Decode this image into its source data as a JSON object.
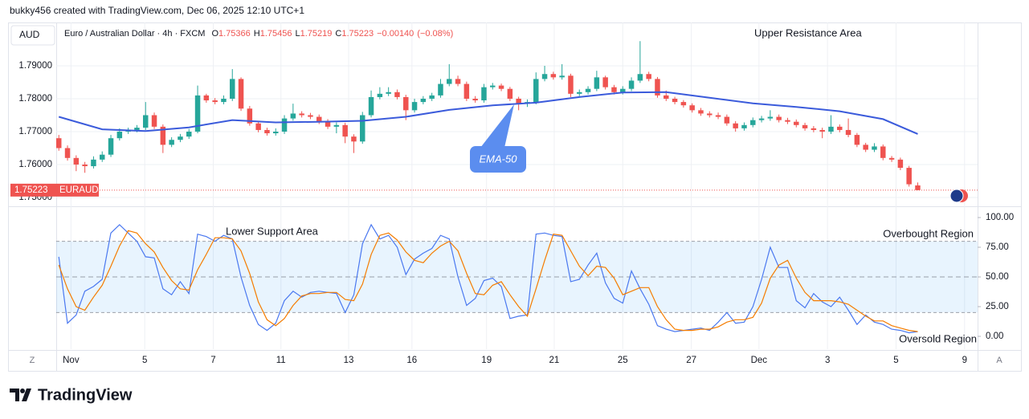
{
  "header": {
    "credit": "bukky456 created with TradingView.com, Dec 06, 2025 12:10 UTC+1",
    "currency": "AUD",
    "brand": "TradingView",
    "buttons": [
      "Z",
      "A"
    ]
  },
  "chart_data": {
    "type": "candlestick",
    "title": "Euro / Australian Dollar · 4h · FXCM",
    "symbol": "EURAUD",
    "ohlc_labels": [
      "O",
      "H",
      "L",
      "C"
    ],
    "change": {
      "value": -0.0014,
      "label": "−0.00140"
    },
    "change_percent": {
      "value": -0.08,
      "label": "(−0.08%)"
    },
    "up_color": "#26a69a",
    "down_color": "#ef5350",
    "xlim": [
      -0.3,
      105.9
    ],
    "xticks": [
      {
        "value": 1.4,
        "label": "Nov"
      },
      {
        "value": 9.9,
        "label": "5"
      },
      {
        "value": 17.8,
        "label": "7"
      },
      {
        "value": 25.6,
        "label": "11"
      },
      {
        "value": 33.4,
        "label": "13"
      },
      {
        "value": 40.7,
        "label": "16"
      },
      {
        "value": 49.3,
        "label": "19"
      },
      {
        "value": 57.1,
        "label": "21"
      },
      {
        "value": 65,
        "label": "25"
      },
      {
        "value": 72.9,
        "label": "27"
      },
      {
        "value": 80.7,
        "label": "Dec"
      },
      {
        "value": 88.6,
        "label": "3"
      },
      {
        "value": 96.5,
        "label": "5"
      },
      {
        "value": 104.4,
        "label": "9"
      }
    ],
    "ylim": [
      1.74756,
      1.80317
    ],
    "yticks": [
      {
        "value": 1.75,
        "label": "1.75000"
      },
      {
        "value": 1.76,
        "label": "1.76000"
      },
      {
        "value": 1.77,
        "label": "1.77000"
      },
      {
        "value": 1.78,
        "label": "1.78000"
      },
      {
        "value": 1.79,
        "label": "1.79000"
      }
    ],
    "grid": true,
    "x": [
      0,
      1,
      2,
      3,
      4,
      5,
      6,
      7,
      8,
      9,
      10,
      11,
      12,
      13,
      14,
      15,
      16,
      17,
      18,
      19,
      20,
      21,
      22,
      23,
      24,
      25,
      26,
      27,
      28,
      29,
      30,
      31,
      32,
      33,
      34,
      35,
      36,
      37,
      38,
      39,
      40,
      41,
      42,
      43,
      44,
      45,
      46,
      47,
      48,
      49,
      50,
      51,
      52,
      53,
      54,
      55,
      56,
      57,
      58,
      59,
      60,
      61,
      62,
      63,
      64,
      65,
      66,
      67,
      68,
      69,
      70,
      71,
      72,
      73,
      74,
      75,
      76,
      77,
      78,
      79,
      80,
      81,
      82,
      83,
      84,
      85,
      86,
      87,
      88,
      89,
      90,
      91,
      92,
      93,
      94,
      95,
      96,
      97,
      98,
      99
    ],
    "candles": {
      "open": [
        1.768,
        1.765,
        1.762,
        1.76,
        1.7595,
        1.7615,
        1.763,
        1.768,
        1.77,
        1.7705,
        1.7712,
        1.775,
        1.7715,
        1.766,
        1.7675,
        1.7685,
        1.77,
        1.781,
        1.7795,
        1.779,
        1.78,
        1.786,
        1.777,
        1.7725,
        1.7705,
        1.7695,
        1.77,
        1.774,
        1.7755,
        1.775,
        1.7745,
        1.773,
        1.7715,
        1.772,
        1.7685,
        1.767,
        1.775,
        1.7805,
        1.7815,
        1.782,
        1.7805,
        1.7765,
        1.779,
        1.78,
        1.781,
        1.7845,
        1.786,
        1.7845,
        1.78,
        1.7795,
        1.7835,
        1.784,
        1.783,
        1.78,
        1.7785,
        1.779,
        1.786,
        1.7875,
        1.7865,
        1.787,
        1.7815,
        1.782,
        1.783,
        1.7865,
        1.7835,
        1.782,
        1.783,
        1.7855,
        1.7875,
        1.786,
        1.781,
        1.78,
        1.779,
        1.778,
        1.7765,
        1.7755,
        1.775,
        1.7745,
        1.7725,
        1.771,
        1.772,
        1.7735,
        1.774,
        1.7745,
        1.7735,
        1.773,
        1.772,
        1.771,
        1.7705,
        1.77,
        1.7715,
        1.7705,
        1.769,
        1.766,
        1.7645,
        1.7655,
        1.762,
        1.7615,
        1.759,
        1.75366
      ],
      "high": [
        1.769,
        1.7658,
        1.7628,
        1.7608,
        1.7625,
        1.764,
        1.769,
        1.771,
        1.7712,
        1.772,
        1.779,
        1.7758,
        1.7722,
        1.7683,
        1.7693,
        1.7708,
        1.784,
        1.7815,
        1.7802,
        1.781,
        1.789,
        1.7865,
        1.7778,
        1.7732,
        1.7712,
        1.771,
        1.775,
        1.7785,
        1.7762,
        1.7757,
        1.7752,
        1.7738,
        1.7728,
        1.7727,
        1.7692,
        1.776,
        1.7825,
        1.7835,
        1.7835,
        1.7828,
        1.7812,
        1.78,
        1.7808,
        1.7818,
        1.786,
        1.7905,
        1.787,
        1.7852,
        1.7808,
        1.7845,
        1.7848,
        1.7846,
        1.7836,
        1.7806,
        1.7798,
        1.788,
        1.79,
        1.7882,
        1.7905,
        1.7876,
        1.7828,
        1.7838,
        1.7885,
        1.787,
        1.7842,
        1.7838,
        1.7865,
        1.7975,
        1.7882,
        1.7866,
        1.7825,
        1.7806,
        1.7796,
        1.7786,
        1.7772,
        1.7762,
        1.7758,
        1.7752,
        1.7732,
        1.7728,
        1.7743,
        1.7748,
        1.7765,
        1.7752,
        1.7742,
        1.7737,
        1.7727,
        1.7717,
        1.7712,
        1.775,
        1.7722,
        1.774,
        1.7696,
        1.7666,
        1.7665,
        1.7661,
        1.7626,
        1.7621,
        1.7596,
        1.75456
      ],
      "low": [
        1.7642,
        1.7612,
        1.758,
        1.7575,
        1.7588,
        1.7608,
        1.7623,
        1.7673,
        1.7693,
        1.7698,
        1.7705,
        1.7708,
        1.7635,
        1.7653,
        1.7668,
        1.7678,
        1.7695,
        1.7788,
        1.7783,
        1.7783,
        1.7793,
        1.7763,
        1.7718,
        1.7698,
        1.7688,
        1.7688,
        1.7693,
        1.7733,
        1.7743,
        1.7738,
        1.7723,
        1.7708,
        1.7695,
        1.7665,
        1.7635,
        1.7663,
        1.7743,
        1.7798,
        1.7808,
        1.7798,
        1.7735,
        1.7758,
        1.7783,
        1.7793,
        1.7803,
        1.7838,
        1.7838,
        1.7793,
        1.7788,
        1.7788,
        1.7828,
        1.7823,
        1.7793,
        1.7765,
        1.7775,
        1.7783,
        1.7853,
        1.7858,
        1.7858,
        1.7805,
        1.7808,
        1.7813,
        1.7823,
        1.7828,
        1.7813,
        1.7813,
        1.7823,
        1.7848,
        1.7853,
        1.7803,
        1.7793,
        1.7783,
        1.7773,
        1.7758,
        1.7748,
        1.7743,
        1.7738,
        1.7718,
        1.77,
        1.7703,
        1.7713,
        1.7728,
        1.7733,
        1.7728,
        1.7723,
        1.7713,
        1.7703,
        1.7698,
        1.768,
        1.7693,
        1.7698,
        1.7683,
        1.7653,
        1.7638,
        1.7638,
        1.7613,
        1.7608,
        1.7583,
        1.7533,
        1.75219
      ],
      "close": [
        1.765,
        1.762,
        1.76,
        1.7595,
        1.7615,
        1.763,
        1.768,
        1.77,
        1.7705,
        1.7712,
        1.775,
        1.7715,
        1.766,
        1.7675,
        1.7685,
        1.77,
        1.781,
        1.7795,
        1.779,
        1.78,
        1.786,
        1.777,
        1.7725,
        1.7705,
        1.7695,
        1.77,
        1.774,
        1.7755,
        1.775,
        1.7745,
        1.773,
        1.7715,
        1.772,
        1.7685,
        1.767,
        1.775,
        1.7805,
        1.7815,
        1.782,
        1.7805,
        1.7765,
        1.779,
        1.78,
        1.781,
        1.7845,
        1.786,
        1.7845,
        1.78,
        1.7795,
        1.7835,
        1.784,
        1.783,
        1.78,
        1.7785,
        1.779,
        1.786,
        1.7875,
        1.7865,
        1.787,
        1.7815,
        1.782,
        1.783,
        1.7865,
        1.7835,
        1.782,
        1.783,
        1.7855,
        1.7875,
        1.786,
        1.781,
        1.78,
        1.779,
        1.778,
        1.7765,
        1.7755,
        1.775,
        1.7745,
        1.7725,
        1.771,
        1.772,
        1.7735,
        1.774,
        1.7745,
        1.7735,
        1.773,
        1.772,
        1.771,
        1.7705,
        1.77,
        1.7715,
        1.7705,
        1.769,
        1.766,
        1.7645,
        1.7655,
        1.762,
        1.7615,
        1.759,
        1.754,
        1.75223
      ]
    },
    "ema": {
      "name": "EMA-50",
      "color": "#3b5bdb",
      "x": [
        0,
        5,
        10,
        15,
        20,
        25,
        30,
        35,
        40,
        45,
        50,
        55,
        60,
        65,
        70,
        75,
        80,
        85,
        90,
        95,
        99
      ],
      "values": [
        1.7745,
        1.7707,
        1.7702,
        1.7713,
        1.7735,
        1.7728,
        1.773,
        1.7733,
        1.7745,
        1.7766,
        1.778,
        1.7788,
        1.7805,
        1.7819,
        1.782,
        1.7803,
        1.7786,
        1.7775,
        1.7762,
        1.7738,
        1.7693
      ]
    },
    "annotations": [
      "Upper Resistance Area",
      "Lower Support Area",
      "Overbought Region",
      "Oversold Region"
    ],
    "oscillator": {
      "type": "line",
      "ylim": [
        -10.8,
        108.8
      ],
      "yticks": [
        {
          "value": 0,
          "label": "0.00"
        },
        {
          "value": 25,
          "label": "25.00"
        },
        {
          "value": 50,
          "label": "50.00"
        },
        {
          "value": 75,
          "label": "75.00"
        },
        {
          "value": 100,
          "label": "100.00"
        }
      ],
      "levels": [
        80,
        50,
        20
      ],
      "band_color": "#2196f3",
      "series": [
        {
          "color": "#4a78f0",
          "values": [
            67,
            11,
            18,
            38,
            42,
            48,
            87,
            94,
            87,
            80,
            67,
            66,
            40,
            35,
            46,
            36,
            86,
            84,
            80,
            85,
            82,
            50,
            26,
            10,
            5,
            11,
            30,
            38,
            33,
            37,
            38,
            37,
            36,
            20,
            35,
            78,
            94,
            82,
            85,
            75,
            52,
            65,
            70,
            74,
            85,
            82,
            50,
            26,
            32,
            47,
            49,
            42,
            15,
            17,
            18,
            86,
            87,
            85,
            84,
            46,
            48,
            60,
            70,
            45,
            32,
            28,
            55,
            40,
            27,
            9,
            6,
            4,
            5,
            6,
            7,
            5,
            12,
            20,
            11,
            12,
            25,
            48,
            75,
            58,
            58,
            30,
            24,
            36,
            29,
            25,
            33,
            22,
            10,
            18,
            12,
            10,
            6,
            5,
            3,
            4
          ]
        },
        {
          "color": "#f57c00",
          "values": [
            60,
            40,
            25,
            22,
            33,
            43,
            59,
            76,
            89,
            87,
            78,
            71,
            58,
            47,
            40,
            39,
            56,
            69,
            83,
            83,
            82,
            72,
            53,
            29,
            14,
            9,
            15,
            26,
            34,
            36,
            36,
            37,
            37,
            31,
            30,
            44,
            69,
            85,
            87,
            81,
            71,
            64,
            62,
            70,
            76,
            80,
            72,
            53,
            36,
            35,
            43,
            46,
            35,
            25,
            17,
            40,
            64,
            86,
            85,
            72,
            59,
            51,
            59,
            58,
            49,
            35,
            38,
            41,
            41,
            25,
            14,
            6,
            5,
            5,
            6,
            6,
            8,
            12,
            14,
            14,
            16,
            28,
            49,
            60,
            64,
            49,
            37,
            30,
            30,
            30,
            29,
            27,
            22,
            17,
            13,
            13,
            9,
            7,
            5,
            4
          ]
        }
      ]
    }
  }
}
